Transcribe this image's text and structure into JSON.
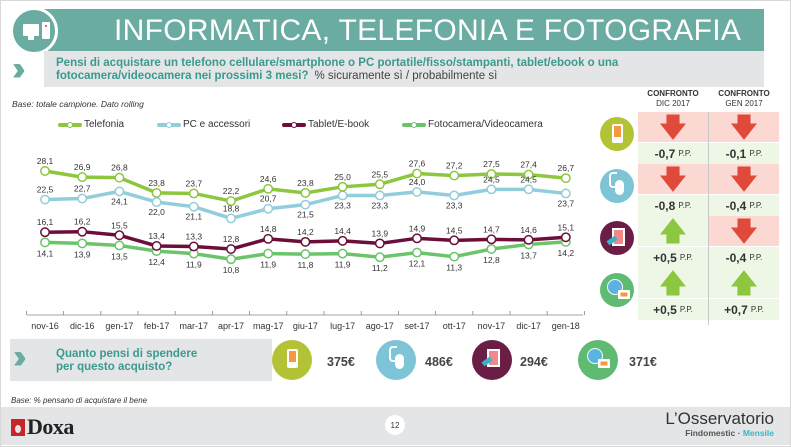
{
  "header": {
    "title": "INFORMATICA, TELEFONIA E FOTOGRAFIA",
    "question": "Pensi di acquistare un telefono cellulare/smartphone o PC portatile/fisso/stampanti, tablet/ebook o una fotocamera/videocamera nei prossimi 3 mesi?",
    "question_sub": "% sicuramente sì / probabilmente sì",
    "icon": "computer-icon"
  },
  "base_top": "Base: totale campione. Dato rolling",
  "chart_data": {
    "type": "line",
    "title": "",
    "xlabel": "",
    "ylabel": "",
    "ylim": [
      0,
      35
    ],
    "grid": false,
    "legend_position": "top",
    "categories": [
      "nov-16",
      "dic-16",
      "gen-17",
      "feb-17",
      "mar-17",
      "apr-17",
      "mag-17",
      "giu-17",
      "lug-17",
      "ago-17",
      "set-17",
      "ott-17",
      "nov-17",
      "dic-17",
      "gen-18"
    ],
    "series": [
      {
        "name": "Telefonia",
        "color": "#8dc63f",
        "label_pos": "above",
        "values": [
          28.1,
          26.9,
          26.8,
          23.8,
          23.7,
          22.2,
          24.6,
          23.8,
          25.0,
          25.5,
          27.6,
          27.2,
          27.5,
          27.4,
          26.7
        ]
      },
      {
        "name": "PC e accessori",
        "color": "#92cddc",
        "label_pos": "mixed",
        "values": [
          22.5,
          22.7,
          24.1,
          22.0,
          21.1,
          18.8,
          20.7,
          21.5,
          23.3,
          23.3,
          24.0,
          23.3,
          24.5,
          24.5,
          23.7
        ]
      },
      {
        "name": "Tablet/E-book",
        "color": "#6b0f3a",
        "label_pos": "above",
        "values": [
          16.1,
          16.2,
          15.5,
          13.4,
          13.3,
          12.8,
          14.8,
          14.2,
          14.4,
          13.9,
          14.9,
          14.5,
          14.7,
          14.6,
          15.1
        ]
      },
      {
        "name": "Fotocamera/Videocamera",
        "color": "#6cc46a",
        "label_pos": "below",
        "values": [
          14.1,
          13.9,
          13.5,
          12.4,
          11.9,
          10.8,
          11.9,
          11.8,
          11.9,
          11.2,
          12.1,
          11.3,
          12.8,
          13.7,
          14.2
        ]
      }
    ]
  },
  "comparison": {
    "headers": [
      {
        "line1": "CONFRONTO",
        "line2": "DIC 2017"
      },
      {
        "line1": "CONFRONTO",
        "line2": "GEN 2017"
      }
    ],
    "unit": "P.P.",
    "rows": [
      {
        "icon": "smartphone-icon",
        "cells": [
          {
            "dir": "down",
            "value": "-0,7"
          },
          {
            "dir": "down",
            "value": "-0,1"
          }
        ]
      },
      {
        "icon": "mouse-icon",
        "cells": [
          {
            "dir": "down",
            "value": "-0,8"
          },
          {
            "dir": "down",
            "value": "-0,4"
          }
        ]
      },
      {
        "icon": "tablet-icon",
        "cells": [
          {
            "dir": "up",
            "value": "+0,5"
          },
          {
            "dir": "down",
            "value": "-0,4"
          }
        ]
      },
      {
        "icon": "camera-globe-icon",
        "cells": [
          {
            "dir": "up",
            "value": "+0,5"
          },
          {
            "dir": "up",
            "value": "+0,7"
          }
        ]
      }
    ],
    "arrow_up": "🡅",
    "arrow_down": "🡇"
  },
  "spending": {
    "question_line1": "Quanto pensi di spendere",
    "question_line2": "per questo acquisto?",
    "items": [
      {
        "icon": "smartphone-icon",
        "value": "375€"
      },
      {
        "icon": "mouse-icon",
        "value": "486€"
      },
      {
        "icon": "tablet-icon",
        "value": "294€"
      },
      {
        "icon": "camera-globe-icon",
        "value": "371€"
      }
    ]
  },
  "base_bottom": "Base: % pensano di acquistare il bene",
  "footer": {
    "logo": "Doxa",
    "page_number": "12",
    "brand_main": "L’Osservatorio",
    "brand_sub_1": "Findomestic · ",
    "brand_sub_2": "Mensile"
  }
}
